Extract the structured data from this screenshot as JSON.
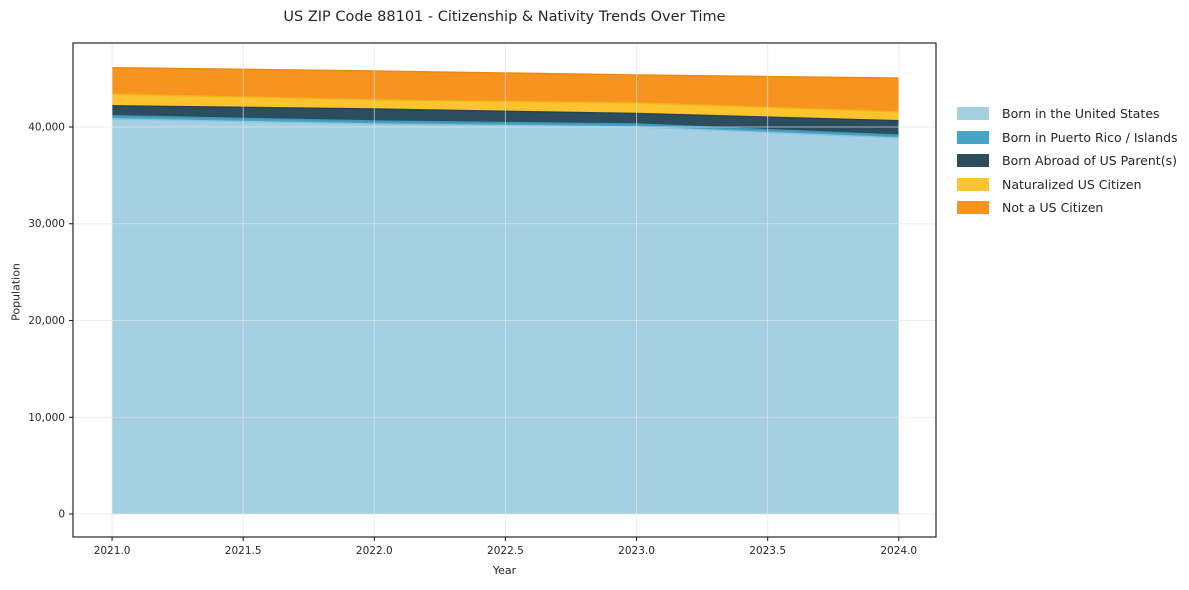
{
  "chart_data": {
    "type": "area",
    "stacked": true,
    "title": "US ZIP Code 88101 - Citizenship & Nativity Trends Over Time",
    "xlabel": "Year",
    "ylabel": "Population",
    "x": [
      2021,
      2022,
      2023,
      2024
    ],
    "series": [
      {
        "id": "born-us",
        "name": "Born in the United States",
        "color": "#A5CFE3",
        "edge": "#8FC2DB",
        "values": [
          40830,
          40310,
          40010,
          38870
        ]
      },
      {
        "id": "born-pr",
        "name": "Born in Puerto Rico / Islands",
        "color": "#46A4C4",
        "edge": "#3D96B5",
        "values": [
          340,
          310,
          300,
          300
        ]
      },
      {
        "id": "born-abroad",
        "name": "Born Abroad of US Parent(s)",
        "color": "#2C4D5E",
        "edge": "#264450",
        "values": [
          1030,
          1240,
          1090,
          1480
        ]
      },
      {
        "id": "naturalized",
        "name": "Naturalized US Citizen",
        "color": "#FDC42F",
        "edge": "#F2B71B",
        "values": [
          1190,
          930,
          1080,
          900
        ]
      },
      {
        "id": "not-citizen",
        "name": "Not a US Citizen",
        "color": "#F7941F",
        "edge": "#EA8812",
        "values": [
          2740,
          3000,
          2900,
          3510
        ]
      }
    ],
    "x_ticks": [
      {
        "v": 2021.0,
        "label": "2021.0"
      },
      {
        "v": 2021.5,
        "label": "2021.5"
      },
      {
        "v": 2022.0,
        "label": "2022.0"
      },
      {
        "v": 2022.5,
        "label": "2022.5"
      },
      {
        "v": 2023.0,
        "label": "2023.0"
      },
      {
        "v": 2023.5,
        "label": "2023.5"
      },
      {
        "v": 2024.0,
        "label": "2024.0"
      }
    ],
    "y_ticks": [
      {
        "v": 0,
        "label": "0"
      },
      {
        "v": 10000,
        "label": "10,000"
      },
      {
        "v": 20000,
        "label": "20,000"
      },
      {
        "v": 30000,
        "label": "30,000"
      },
      {
        "v": 40000,
        "label": "40,000"
      }
    ],
    "xlim": [
      2020.851,
      2024.142
    ],
    "ylim": [
      -2377,
      48682
    ],
    "grid": true,
    "legend_position": "right-outside"
  }
}
